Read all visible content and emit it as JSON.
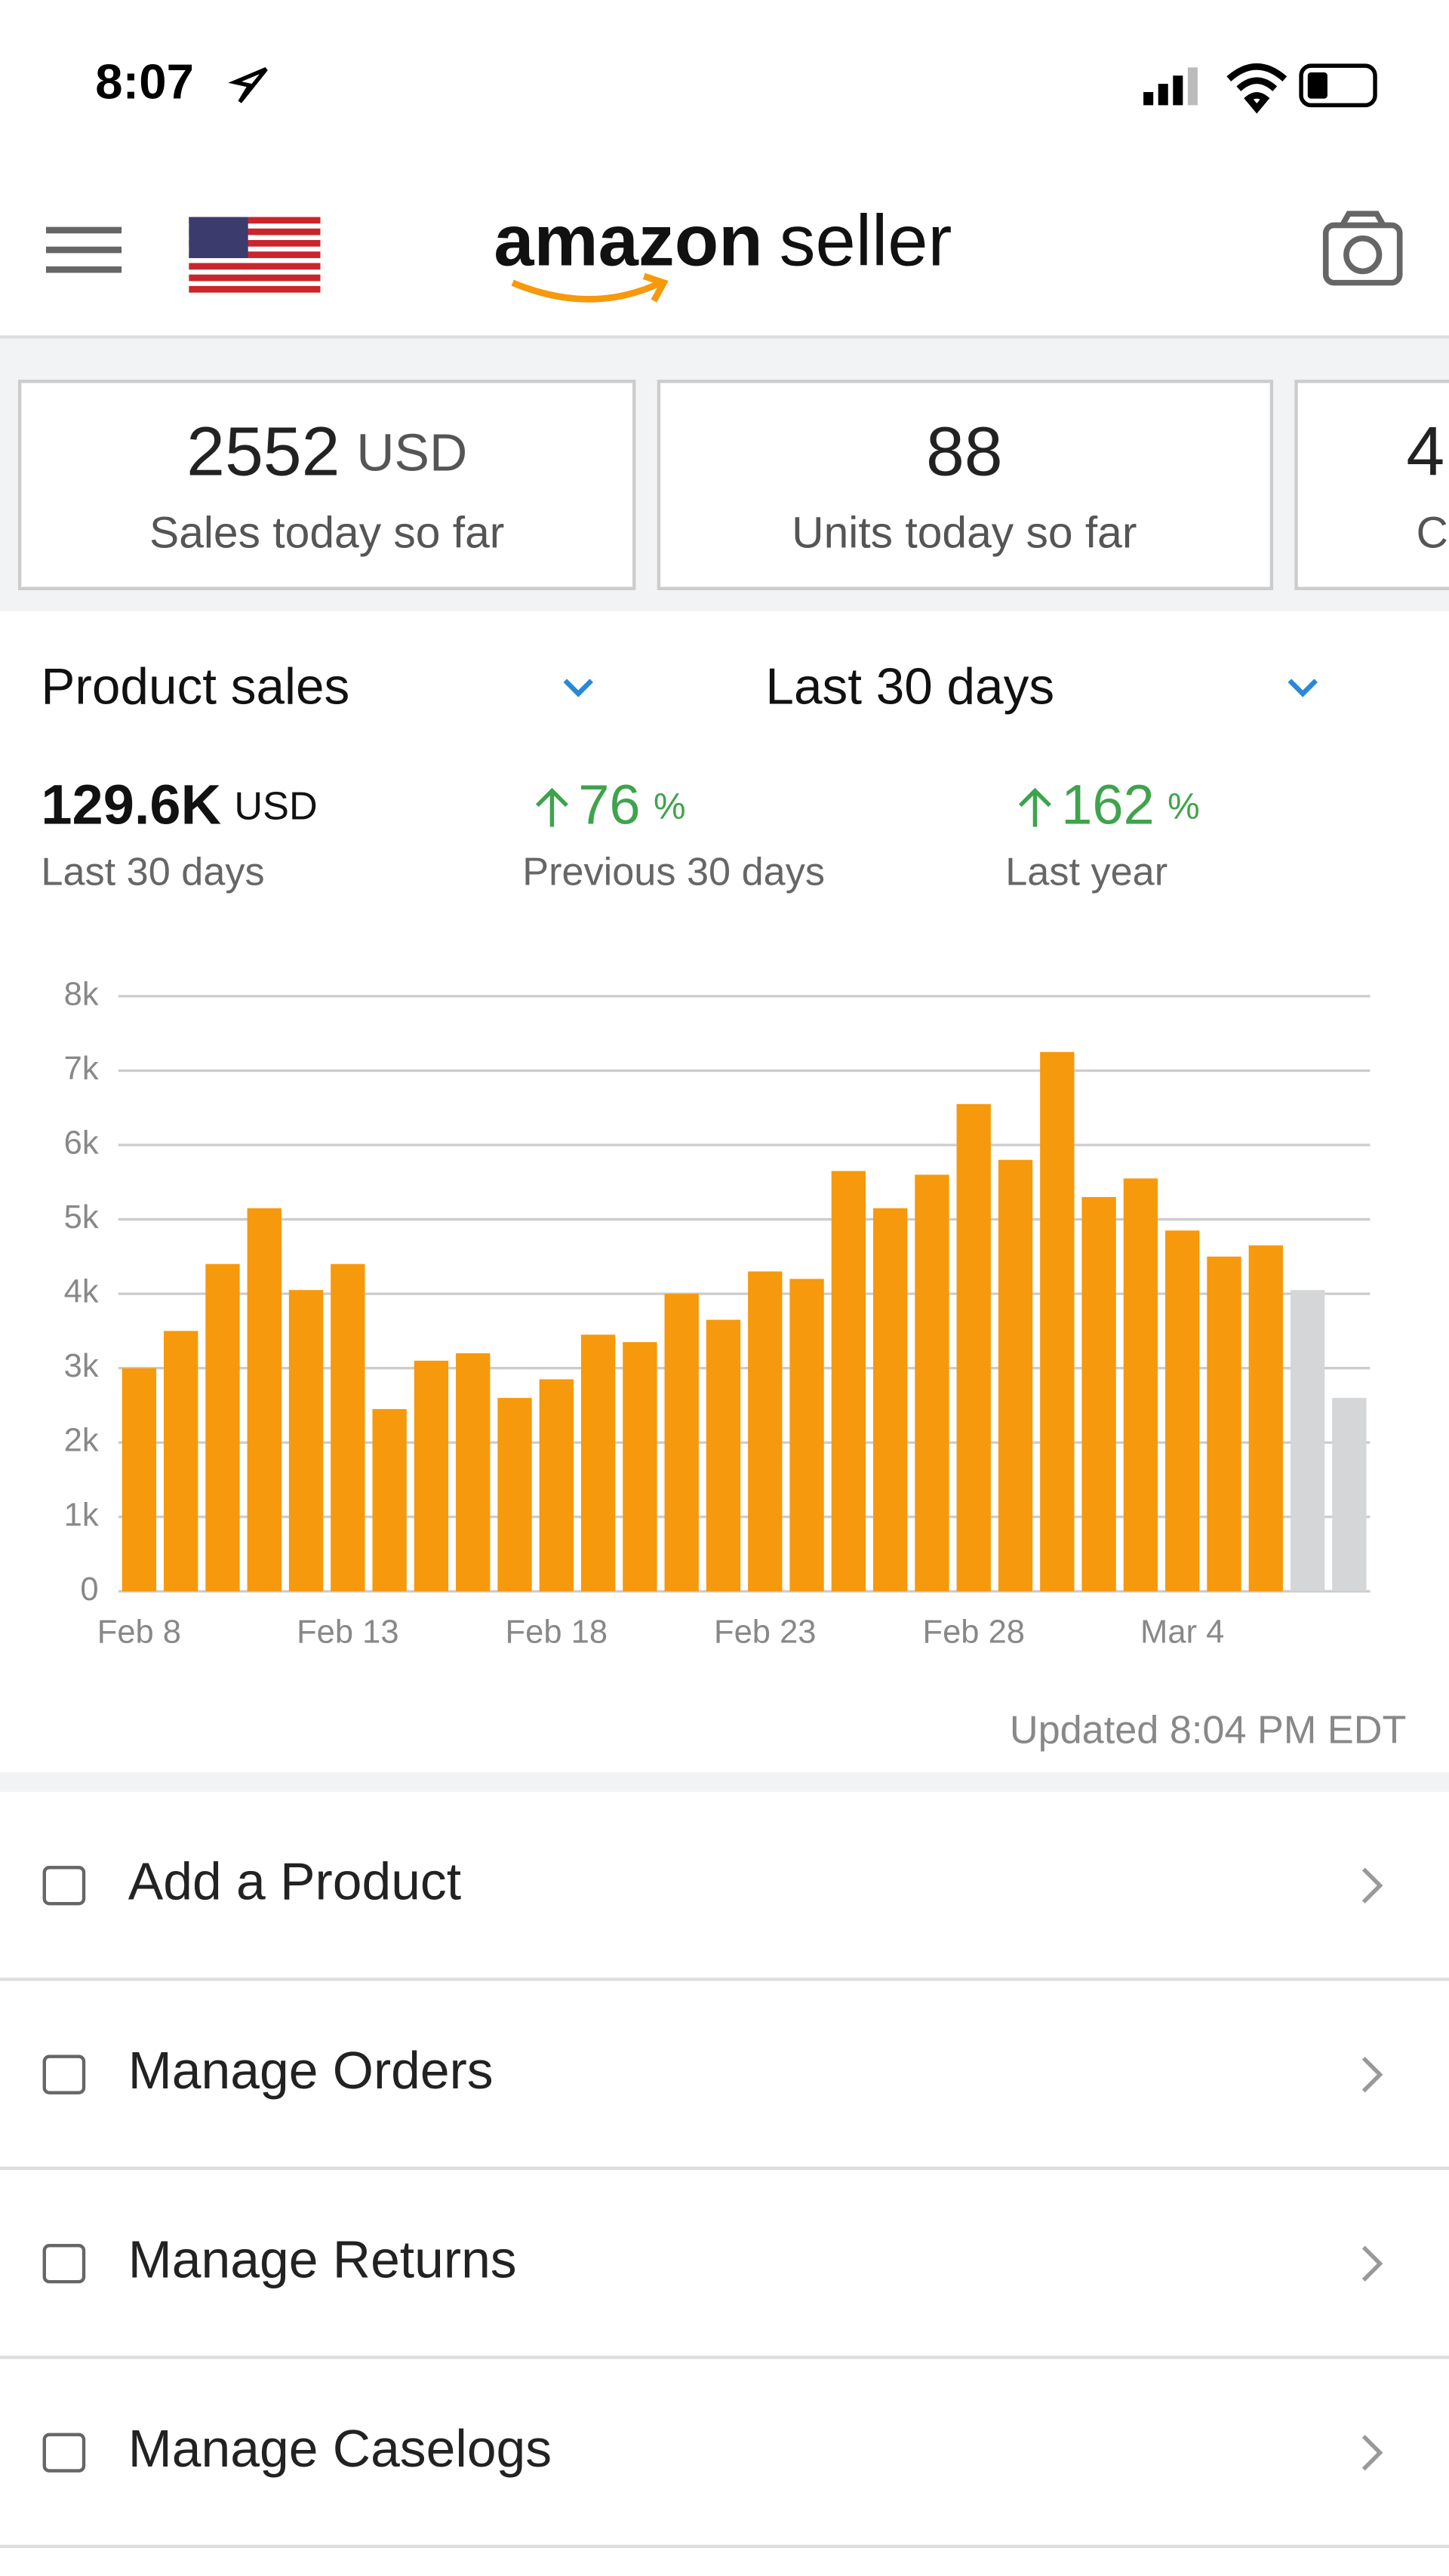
{
  "status_bar": {
    "time": "8:07"
  },
  "header": {
    "logo_brand": "amazon",
    "logo_product": "seller"
  },
  "tiles": [
    {
      "value": "2552",
      "unit": "USD",
      "label": "Sales today so far"
    },
    {
      "value": "88",
      "label": "Units today so far"
    },
    {
      "value": "4",
      "label": "C"
    }
  ],
  "selectors": {
    "metric": "Product sales",
    "period": "Last 30 days"
  },
  "summary": [
    {
      "value": "129.6K",
      "unit": "USD",
      "label": "Last 30 days"
    },
    {
      "value": "76",
      "unit": "%",
      "label": "Previous 30 days"
    },
    {
      "value": "162",
      "unit": "%",
      "label": "Last year"
    }
  ],
  "chart_data": {
    "type": "bar",
    "categories": [
      "Feb 8",
      null,
      null,
      null,
      null,
      "Feb 13",
      null,
      null,
      null,
      null,
      "Feb 18",
      null,
      null,
      null,
      null,
      "Feb 23",
      null,
      null,
      null,
      null,
      "Feb 28",
      null,
      null,
      null,
      null,
      "Mar 4",
      null,
      null,
      null,
      null
    ],
    "values": [
      3000,
      3500,
      4400,
      5150,
      4050,
      4400,
      2450,
      3100,
      3200,
      2600,
      2850,
      3450,
      3350,
      4000,
      3650,
      4300,
      4200,
      5650,
      5150,
      5600,
      6550,
      5800,
      7250,
      5300,
      5550,
      4850,
      4500,
      4650,
      4050,
      2600
    ],
    "bar_colors": [
      "#f7990c",
      "#f7990c",
      "#f7990c",
      "#f7990c",
      "#f7990c",
      "#f7990c",
      "#f7990c",
      "#f7990c",
      "#f7990c",
      "#f7990c",
      "#f7990c",
      "#f7990c",
      "#f7990c",
      "#f7990c",
      "#f7990c",
      "#f7990c",
      "#f7990c",
      "#f7990c",
      "#f7990c",
      "#f7990c",
      "#f7990c",
      "#f7990c",
      "#f7990c",
      "#f7990c",
      "#f7990c",
      "#f7990c",
      "#f7990c",
      "#f7990c",
      "#d5d6d8",
      "#d5d6d8"
    ],
    "ylim": [
      0,
      8000
    ],
    "yticks": [
      0,
      {
        "value": 1000,
        "label": "1k"
      },
      {
        "value": 2000,
        "label": "2k"
      },
      {
        "value": 3000,
        "label": "3k"
      },
      {
        "value": 4000,
        "label": "4k"
      },
      {
        "value": 5000,
        "label": "5k"
      },
      {
        "value": 6000,
        "label": "6k"
      },
      {
        "value": 7000,
        "label": "7k"
      },
      {
        "value": 8000,
        "label": "8k"
      }
    ],
    "grid": true
  },
  "updated": "Updated 8:04 PM EDT",
  "menu": [
    "Add a Product",
    "Manage Orders",
    "Manage Returns",
    "Manage Caselogs"
  ]
}
